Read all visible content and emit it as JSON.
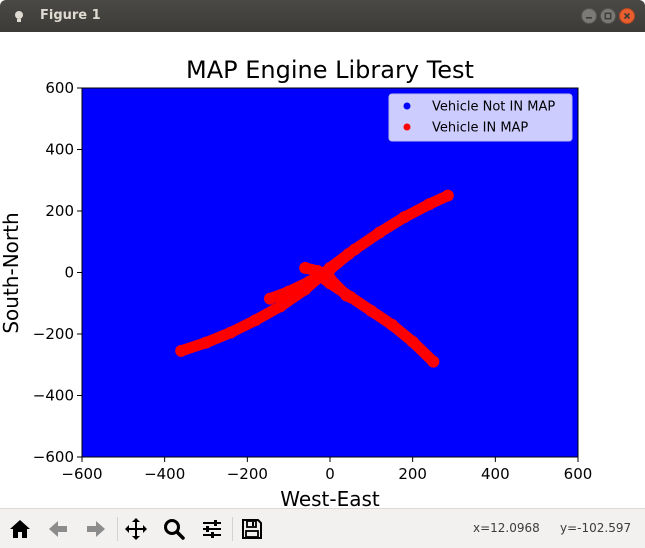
{
  "window": {
    "title": "Figure 1",
    "controls": {
      "minimize_icon": "minimize-icon",
      "maximize_icon": "maximize-icon",
      "close_icon": "close-icon"
    }
  },
  "toolbar": {
    "buttons": [
      {
        "name": "home",
        "icon": "home-icon",
        "enabled": true
      },
      {
        "name": "back",
        "icon": "arrow-left-icon",
        "enabled": false
      },
      {
        "name": "forward",
        "icon": "arrow-right-icon",
        "enabled": false
      },
      {
        "name": "pan",
        "icon": "move-icon",
        "enabled": true
      },
      {
        "name": "zoom",
        "icon": "magnifier-icon",
        "enabled": true
      },
      {
        "name": "configure",
        "icon": "sliders-icon",
        "enabled": true
      },
      {
        "name": "save",
        "icon": "floppy-icon",
        "enabled": true
      }
    ],
    "coord_x": "x=12.0968",
    "coord_y": "y=-102.597"
  },
  "colors": {
    "background": "#0000ff",
    "in_map": "#ff0000",
    "not_in_map": "#0000ff",
    "legend_bg": "#ccccff"
  },
  "chart_data": {
    "type": "scatter",
    "title": "MAP Engine Library Test",
    "xlabel": "West-East",
    "ylabel": "South-North",
    "xlim": [
      -600,
      600
    ],
    "ylim": [
      -600,
      600
    ],
    "xticks": [
      -600,
      -400,
      -200,
      0,
      200,
      400,
      600
    ],
    "yticks": [
      -600,
      -400,
      -200,
      0,
      200,
      400,
      600
    ],
    "xtick_labels": [
      "−600",
      "−400",
      "−200",
      "0",
      "200",
      "400",
      "600"
    ],
    "ytick_labels": [
      "−600",
      "−400",
      "−200",
      "0",
      "200",
      "400",
      "600"
    ],
    "grid": false,
    "legend_position": "upper-right",
    "series": [
      {
        "name": "Vehicle Not IN MAP",
        "color": "#0000ff",
        "x": [],
        "y": []
      },
      {
        "name": "Vehicle IN MAP",
        "color": "#ff0000",
        "tracks": [
          {
            "x": [
              -360,
              -300,
              -240,
              -180,
              -120,
              -60,
              0,
              60,
              120,
              180,
              240,
              285
            ],
            "y": [
              -255,
              -228,
              -195,
              -155,
              -110,
              -55,
              15,
              75,
              130,
              180,
              222,
              250
            ]
          },
          {
            "x": [
              -145,
              -100,
              -50,
              0,
              45
            ],
            "y": [
              -85,
              -62,
              -30,
              10,
              60
            ]
          },
          {
            "x": [
              -60,
              -30,
              0,
              40
            ],
            "y": [
              15,
              5,
              -20,
              -75
            ]
          },
          {
            "x": [
              -35,
              0,
              50,
              100,
              150,
              200,
              250
            ],
            "y": [
              0,
              -35,
              -80,
              -125,
              -170,
              -225,
              -290
            ]
          }
        ]
      }
    ]
  }
}
